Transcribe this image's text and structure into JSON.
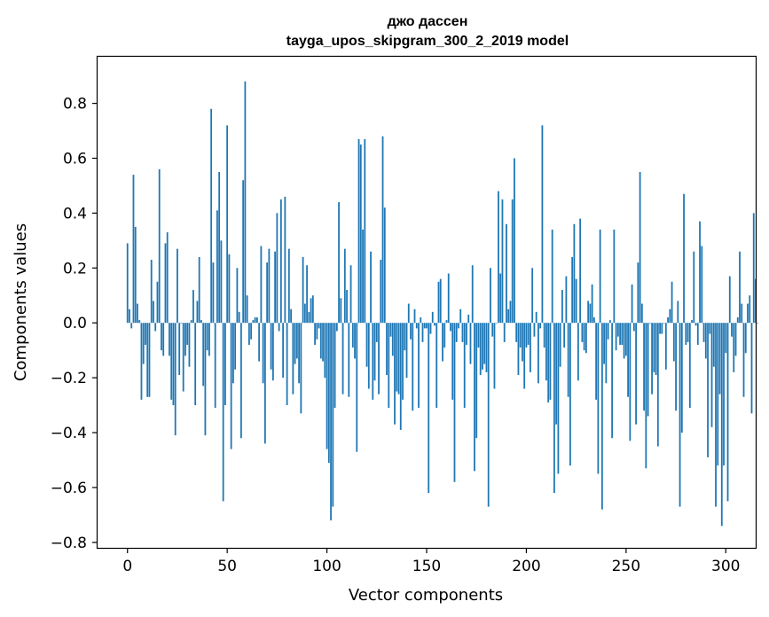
{
  "chart_data": {
    "type": "bar",
    "title": "джо дассен",
    "subtitle": "tayga_upos_skipgram_300_2_2019 model",
    "xlabel": "Vector components",
    "ylabel": "Components values",
    "xlim": [
      -15,
      315
    ],
    "ylim": [
      -0.82,
      0.97
    ],
    "xticks": [
      0,
      50,
      100,
      150,
      200,
      250,
      300
    ],
    "xtick_labels": [
      "0",
      "50",
      "100",
      "150",
      "200",
      "250",
      "300"
    ],
    "yticks": [
      -0.8,
      -0.6,
      -0.4,
      -0.2,
      0.0,
      0.2,
      0.4,
      0.6,
      0.8
    ],
    "ytick_labels": [
      "−0.8",
      "−0.6",
      "−0.4",
      "−0.2",
      "0.0",
      "0.2",
      "0.4",
      "0.6",
      "0.8"
    ],
    "bar_color": "#1f77b4",
    "grid": false,
    "series": [
      {
        "values": [
          0.29,
          0.05,
          -0.02,
          0.54,
          0.35,
          0.07,
          0.01,
          -0.28,
          -0.15,
          -0.08,
          -0.27,
          -0.27,
          0.23,
          0.08,
          -0.03,
          0.15,
          0.56,
          -0.1,
          -0.12,
          0.29,
          0.33,
          -0.12,
          -0.28,
          -0.3,
          -0.41,
          0.27,
          -0.19,
          0.0,
          -0.25,
          -0.12,
          -0.08,
          -0.16,
          0.01,
          0.12,
          -0.3,
          0.08,
          0.24,
          0.01,
          -0.23,
          -0.41,
          -0.1,
          -0.12,
          0.78,
          0.22,
          -0.31,
          0.41,
          0.55,
          0.3,
          -0.65,
          -0.3,
          0.72,
          0.25,
          -0.46,
          -0.22,
          -0.17,
          0.2,
          0.04,
          -0.42,
          0.52,
          0.88,
          0.1,
          -0.08,
          -0.06,
          0.01,
          0.02,
          0.02,
          -0.14,
          0.28,
          -0.22,
          -0.44,
          0.22,
          0.27,
          -0.17,
          -0.21,
          0.26,
          0.4,
          -0.03,
          0.45,
          -0.2,
          0.46,
          -0.3,
          0.27,
          0.05,
          -0.26,
          -0.15,
          -0.13,
          -0.22,
          -0.33,
          0.24,
          0.07,
          0.21,
          0.04,
          0.09,
          0.1,
          -0.08,
          -0.06,
          -0.02,
          -0.13,
          -0.14,
          -0.2,
          -0.46,
          -0.51,
          -0.72,
          -0.67,
          -0.31,
          -0.03,
          0.44,
          0.09,
          -0.26,
          0.27,
          0.12,
          -0.27,
          0.21,
          -0.09,
          -0.13,
          -0.47,
          0.67,
          0.65,
          0.34,
          0.67,
          -0.16,
          -0.24,
          0.26,
          -0.28,
          -0.21,
          -0.07,
          -0.26,
          0.23,
          0.68,
          0.42,
          -0.19,
          -0.31,
          -0.05,
          -0.12,
          -0.37,
          -0.25,
          -0.26,
          -0.39,
          -0.28,
          -0.1,
          -0.2,
          0.07,
          -0.06,
          -0.32,
          0.05,
          -0.02,
          -0.31,
          0.02,
          -0.07,
          -0.02,
          -0.02,
          -0.62,
          -0.04,
          0.04,
          -0.01,
          -0.31,
          0.15,
          0.16,
          -0.14,
          -0.09,
          0.01,
          0.18,
          -0.03,
          -0.28,
          -0.58,
          -0.07,
          -0.02,
          0.05,
          -0.07,
          -0.31,
          -0.08,
          0.03,
          -0.15,
          0.21,
          -0.54,
          -0.42,
          -0.09,
          -0.19,
          -0.17,
          -0.15,
          -0.18,
          -0.67,
          0.2,
          -0.05,
          -0.24,
          0.0,
          0.48,
          0.18,
          0.45,
          -0.07,
          0.36,
          0.05,
          0.08,
          0.45,
          0.6,
          -0.07,
          -0.19,
          -0.09,
          -0.14,
          -0.24,
          -0.09,
          -0.08,
          -0.18,
          0.2,
          -0.05,
          0.04,
          -0.22,
          -0.02,
          0.72,
          -0.09,
          -0.21,
          -0.29,
          -0.28,
          0.34,
          -0.62,
          -0.37,
          -0.55,
          -0.16,
          0.12,
          -0.09,
          0.17,
          -0.27,
          -0.52,
          0.24,
          0.36,
          0.16,
          -0.21,
          0.38,
          -0.07,
          -0.1,
          -0.11,
          0.08,
          0.07,
          0.14,
          0.02,
          -0.28,
          -0.55,
          0.34,
          -0.68,
          -0.15,
          -0.22,
          -0.06,
          0.01,
          -0.42,
          0.34,
          -0.1,
          -0.05,
          -0.08,
          -0.08,
          -0.13,
          -0.12,
          -0.27,
          -0.43,
          0.14,
          -0.03,
          -0.37,
          0.22,
          0.55,
          0.07,
          -0.32,
          -0.53,
          -0.34,
          0.0,
          -0.26,
          -0.18,
          -0.19,
          -0.45,
          -0.04,
          -0.04,
          0.0,
          -0.17,
          0.02,
          0.05,
          0.15,
          -0.14,
          -0.32,
          0.08,
          -0.67,
          -0.4,
          0.47,
          -0.08,
          -0.07,
          -0.31,
          0.01,
          0.26,
          -0.01,
          -0.08,
          0.37,
          0.28,
          -0.07,
          -0.13,
          -0.49,
          -0.04,
          -0.38,
          -0.16,
          -0.67,
          -0.52,
          -0.26,
          -0.74,
          -0.52,
          -0.11,
          -0.65,
          0.17,
          -0.05,
          -0.18,
          -0.12,
          0.02,
          0.26,
          0.07,
          -0.27,
          -0.11,
          0.07,
          0.1,
          -0.33,
          0.4,
          0.16,
          0.0
        ]
      }
    ]
  }
}
